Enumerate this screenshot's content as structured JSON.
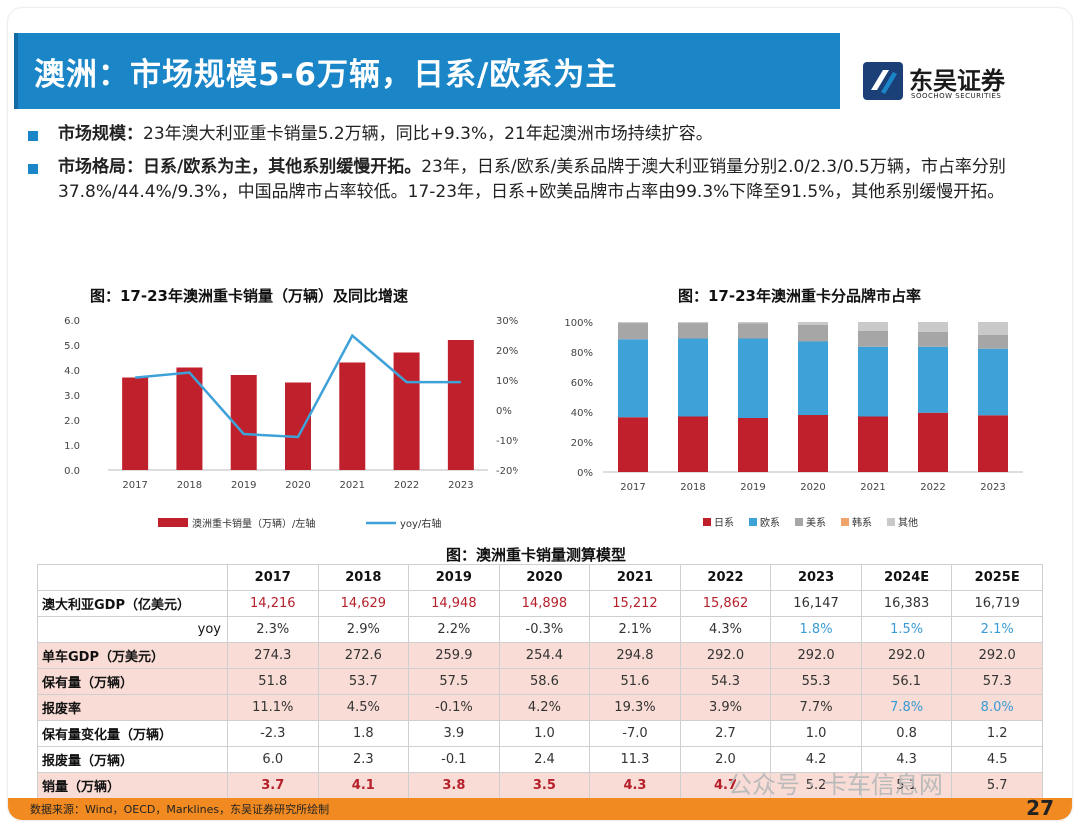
{
  "header": {
    "title": "澳洲：市场规模5-6万辆，日系/欧系为主",
    "logo_cn": "东吴证券",
    "logo_en": "SOOCHOW SECURITIES"
  },
  "bullets": [
    {
      "head": "市场规模：",
      "text": "23年澳大利亚重卡销量5.2万辆，同比+9.3%，21年起澳洲市场持续扩容。"
    },
    {
      "head": "市场格局：日系/欧系为主，其他系别缓慢开拓。",
      "text": "23年，日系/欧系/美系品牌于澳大利亚销量分别2.0/2.3/0.5万辆，市占率分别37.8%/44.4%/9.3%，中国品牌市占率较低。17-23年，日系+欧美品牌市占率由99.3%下降至91.5%，其他系别缓慢开拓。"
    }
  ],
  "chart_data": [
    {
      "type": "bar",
      "title": "图：17-23年澳洲重卡销量（万辆）及同比增速",
      "categories": [
        "2017",
        "2018",
        "2019",
        "2020",
        "2021",
        "2022",
        "2023"
      ],
      "series": [
        {
          "name": "澳洲重卡销量（万辆）/左轴",
          "type": "bar",
          "values": [
            3.7,
            4.1,
            3.8,
            3.5,
            4.3,
            4.7,
            5.2
          ],
          "color": "#c0202b"
        },
        {
          "name": "yoy/右轴",
          "type": "line",
          "values": [
            10.8,
            12.5,
            -8.0,
            -9.0,
            24.8,
            9.3,
            9.3
          ],
          "color": "#3ea1d8"
        }
      ],
      "left_axis": {
        "ticks": [
          "0.0",
          "1.0",
          "2.0",
          "3.0",
          "4.0",
          "5.0",
          "6.0"
        ],
        "ylim": [
          0,
          6
        ]
      },
      "right_axis": {
        "ticks": [
          "-20%",
          "-10%",
          "0%",
          "10%",
          "20%",
          "30%"
        ],
        "ylim": [
          -20,
          30
        ]
      },
      "legend": "bottom"
    },
    {
      "type": "bar",
      "stacked": true,
      "title": "图：17-23年澳洲重卡分品牌市占率",
      "categories": [
        "2017",
        "2018",
        "2019",
        "2020",
        "2021",
        "2022",
        "2023"
      ],
      "series": [
        {
          "name": "日系",
          "values": [
            36.5,
            37.0,
            36.0,
            38.0,
            37.0,
            39.5,
            37.8
          ],
          "color": "#c0202b"
        },
        {
          "name": "欧系",
          "values": [
            52.0,
            52.0,
            53.0,
            49.0,
            46.5,
            44.0,
            44.4
          ],
          "color": "#3ea1d8"
        },
        {
          "name": "美系",
          "values": [
            10.8,
            10.3,
            10.0,
            11.0,
            10.5,
            10.0,
            9.3
          ],
          "color": "#a6a6a6"
        },
        {
          "name": "韩系",
          "values": [
            0.0,
            0.0,
            0.0,
            0.0,
            0.0,
            0.0,
            0.0
          ],
          "color": "#f0a46a"
        },
        {
          "name": "其他",
          "values": [
            0.7,
            0.7,
            1.0,
            2.0,
            6.0,
            6.5,
            8.5
          ],
          "color": "#c9c9c9"
        }
      ],
      "y_axis": {
        "ticks": [
          "0%",
          "20%",
          "40%",
          "60%",
          "80%",
          "100%"
        ],
        "ylim": [
          0,
          100
        ]
      },
      "legend": "bottom"
    }
  ],
  "table": {
    "title": "图：澳洲重卡销量测算模型",
    "headers": [
      "",
      "2017",
      "2018",
      "2019",
      "2020",
      "2021",
      "2022",
      "2023",
      "2024E",
      "2025E"
    ],
    "rows": [
      {
        "label": "澳大利亚GDP（亿美元）",
        "values": [
          "14,216",
          "14,629",
          "14,948",
          "14,898",
          "15,212",
          "15,862",
          "16,147",
          "16,383",
          "16,719"
        ],
        "style": "red6"
      },
      {
        "label": "yoy",
        "values": [
          "2.3%",
          "2.9%",
          "2.2%",
          "-0.3%",
          "2.1%",
          "4.3%",
          "1.8%",
          "1.5%",
          "2.1%"
        ],
        "style": "blue3",
        "right": true
      },
      {
        "label": "单车GDP（万美元）",
        "values": [
          "274.3",
          "272.6",
          "259.9",
          "254.4",
          "294.8",
          "292.0",
          "292.0",
          "292.0",
          "292.0"
        ],
        "style": "pink"
      },
      {
        "label": "保有量（万辆）",
        "values": [
          "51.8",
          "53.7",
          "57.5",
          "58.6",
          "51.6",
          "54.3",
          "55.3",
          "56.1",
          "57.3"
        ],
        "style": "pink"
      },
      {
        "label": "报废率",
        "values": [
          "11.1%",
          "4.5%",
          "-0.1%",
          "4.2%",
          "19.3%",
          "3.9%",
          "7.7%",
          "7.8%",
          "8.0%"
        ],
        "style": "pink"
      },
      {
        "label": "保有量变化量（万辆）",
        "values": [
          "-2.3",
          "1.8",
          "3.9",
          "1.0",
          "-7.0",
          "2.7",
          "1.0",
          "0.8",
          "1.2"
        ],
        "style": ""
      },
      {
        "label": "报废量（万辆）",
        "values": [
          "6.0",
          "2.3",
          "-0.1",
          "2.4",
          "11.3",
          "2.0",
          "4.2",
          "4.3",
          "4.5"
        ],
        "style": ""
      },
      {
        "label": "销量（万辆）",
        "values": [
          "3.7",
          "4.1",
          "3.8",
          "3.5",
          "4.3",
          "4.7",
          "5.2",
          "5.1",
          "5.7"
        ],
        "style": "pinkred"
      }
    ]
  },
  "footer": {
    "source": "数据来源：Wind，OECD，Marklines，东吴证券研究所绘制",
    "page": "27",
    "watermark": "公众号 · 卡车信息网"
  }
}
